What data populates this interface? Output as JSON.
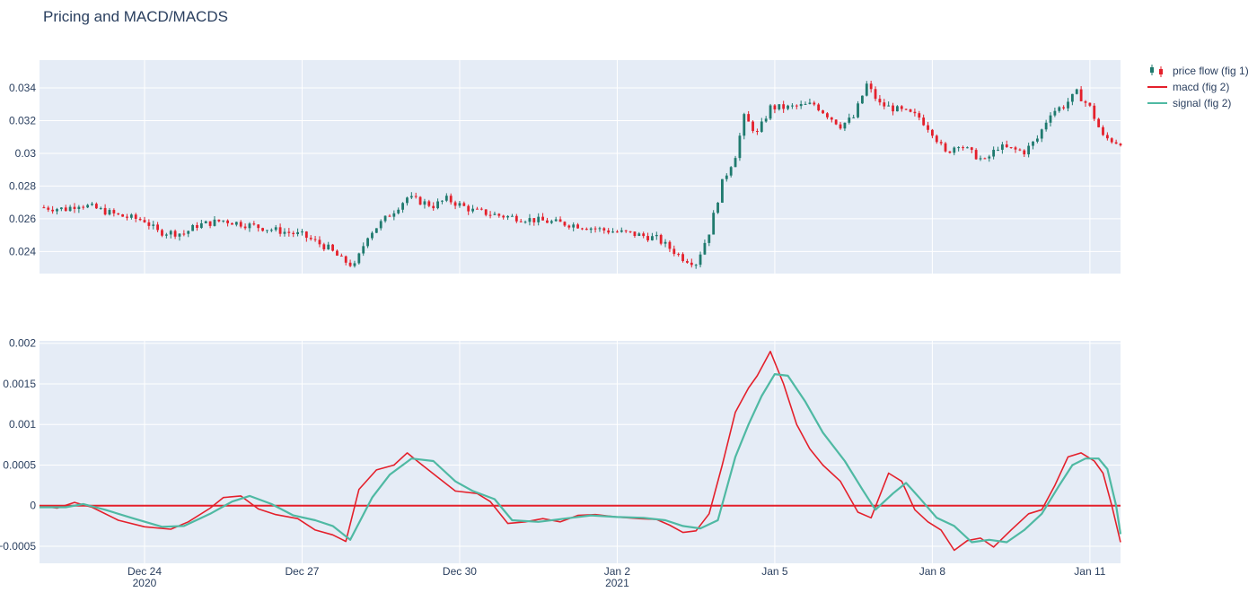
{
  "title": "Pricing and MACD/MACDS",
  "colors": {
    "increasing": "#1f7a6e",
    "decreasing": "#e4202b",
    "macd": "#e4202b",
    "signal": "#4fb9a3",
    "zero_line": "#e4202b",
    "plot_bg": "#e5ecf6",
    "grid": "#ffffff",
    "text": "#2a3f5f"
  },
  "legend": [
    {
      "label": "price flow (fig 1)",
      "type": "candlestick"
    },
    {
      "label": "macd (fig 2)",
      "type": "line",
      "color": "#e4202b"
    },
    {
      "label": "signal (fig 2)",
      "type": "line",
      "color": "#4fb9a3"
    }
  ],
  "chart_data": [
    {
      "type": "candlestick",
      "name": "price flow (fig 1)",
      "x_range": [
        "2020-12-22T00:00",
        "2021-01-11T14:00"
      ],
      "ylim": [
        0.02265,
        0.0357
      ],
      "y_ticks": [
        {
          "value": 0.024,
          "label": "0.024"
        },
        {
          "value": 0.026,
          "label": "0.026"
        },
        {
          "value": 0.028,
          "label": "0.028"
        },
        {
          "value": 0.03,
          "label": "0.03"
        },
        {
          "value": 0.032,
          "label": "0.032"
        },
        {
          "value": 0.034,
          "label": "0.034"
        }
      ],
      "interval_hours": 2,
      "close_profile": [
        [
          "2020-12-22T00:00",
          0.0267
        ],
        [
          "2020-12-22T12:00",
          0.0266
        ],
        [
          "2020-12-22T18:00",
          0.0269
        ],
        [
          "2020-12-23T00:00",
          0.0267
        ],
        [
          "2020-12-23T12:00",
          0.0262
        ],
        [
          "2020-12-24T00:00",
          0.0259
        ],
        [
          "2020-12-24T06:00",
          0.0252
        ],
        [
          "2020-12-24T18:00",
          0.0251
        ],
        [
          "2020-12-25T00:00",
          0.0256
        ],
        [
          "2020-12-25T12:00",
          0.0259
        ],
        [
          "2020-12-26T00:00",
          0.0256
        ],
        [
          "2020-12-26T12:00",
          0.0253
        ],
        [
          "2020-12-27T00:00",
          0.025
        ],
        [
          "2020-12-27T12:00",
          0.0242
        ],
        [
          "2020-12-27T18:00",
          0.0235
        ],
        [
          "2020-12-28T00:00",
          0.0231
        ],
        [
          "2020-12-28T06:00",
          0.025
        ],
        [
          "2020-12-28T18:00",
          0.0265
        ],
        [
          "2020-12-29T00:00",
          0.0273
        ],
        [
          "2020-12-29T12:00",
          0.0268
        ],
        [
          "2020-12-29T18:00",
          0.0272
        ],
        [
          "2020-12-30T06:00",
          0.0265
        ],
        [
          "2020-12-30T18:00",
          0.0262
        ],
        [
          "2020-12-31T12:00",
          0.0259
        ],
        [
          "2021-01-01T06:00",
          0.0256
        ],
        [
          "2021-01-01T18:00",
          0.0253
        ],
        [
          "2021-01-02T06:00",
          0.0251
        ],
        [
          "2021-01-02T18:00",
          0.0248
        ],
        [
          "2021-01-03T00:00",
          0.0242
        ],
        [
          "2021-01-03T06:00",
          0.0236
        ],
        [
          "2021-01-03T12:00",
          0.0233
        ],
        [
          "2021-01-03T18:00",
          0.0252
        ],
        [
          "2021-01-04T00:00",
          0.0282
        ],
        [
          "2021-01-04T06:00",
          0.0299
        ],
        [
          "2021-01-04T10:00",
          0.0322
        ],
        [
          "2021-01-04T16:00",
          0.0312
        ],
        [
          "2021-01-04T22:00",
          0.0328
        ],
        [
          "2021-01-05T06:00",
          0.0328
        ],
        [
          "2021-01-05T18:00",
          0.033
        ],
        [
          "2021-01-06T06:00",
          0.0317
        ],
        [
          "2021-01-06T12:00",
          0.0322
        ],
        [
          "2021-01-06T18:00",
          0.0342
        ],
        [
          "2021-01-07T00:00",
          0.033
        ],
        [
          "2021-01-07T12:00",
          0.0325
        ],
        [
          "2021-01-07T18:00",
          0.0322
        ],
        [
          "2021-01-08T00:00",
          0.0313
        ],
        [
          "2021-01-08T06:00",
          0.03
        ],
        [
          "2021-01-08T12:00",
          0.0306
        ],
        [
          "2021-01-08T18:00",
          0.03
        ],
        [
          "2021-01-09T00:00",
          0.0295
        ],
        [
          "2021-01-09T06:00",
          0.0304
        ],
        [
          "2021-01-09T18:00",
          0.0301
        ],
        [
          "2021-01-10T00:00",
          0.0309
        ],
        [
          "2021-01-10T06:00",
          0.0325
        ],
        [
          "2021-01-10T12:00",
          0.0329
        ],
        [
          "2021-01-10T18:00",
          0.0337
        ],
        [
          "2021-01-11T00:00",
          0.0328
        ],
        [
          "2021-01-11T06:00",
          0.031
        ],
        [
          "2021-01-11T12:00",
          0.0307
        ]
      ]
    },
    {
      "type": "line",
      "x_range": [
        "2020-12-22T00:00",
        "2021-01-11T14:00"
      ],
      "ylim": [
        -0.00071,
        0.00203
      ],
      "y_ticks": [
        {
          "value": -0.0005,
          "label": "−0.0005"
        },
        {
          "value": 0,
          "label": "0"
        },
        {
          "value": 0.0005,
          "label": "0.0005"
        },
        {
          "value": 0.001,
          "label": "0.001"
        },
        {
          "value": 0.0015,
          "label": "0.0015"
        },
        {
          "value": 0.002,
          "label": "0.002"
        }
      ],
      "x_ticks": [
        {
          "value": "2020-12-24",
          "label": "Dec 24",
          "sublabel": "2020"
        },
        {
          "value": "2020-12-27",
          "label": "Dec 27",
          "sublabel": ""
        },
        {
          "value": "2020-12-30",
          "label": "Dec 30",
          "sublabel": ""
        },
        {
          "value": "2021-01-02",
          "label": "Jan 2",
          "sublabel": "2021"
        },
        {
          "value": "2021-01-05",
          "label": "Jan 5",
          "sublabel": ""
        },
        {
          "value": "2021-01-08",
          "label": "Jan 8",
          "sublabel": ""
        },
        {
          "value": "2021-01-11",
          "label": "Jan 11",
          "sublabel": ""
        }
      ],
      "zero_line": 0,
      "series": [
        {
          "name": "macd (fig 2)",
          "points": [
            [
              "2020-12-22T00:00",
              0.0
            ],
            [
              "2020-12-22T08:00",
              -3e-05
            ],
            [
              "2020-12-22T16:00",
              4e-05
            ],
            [
              "2020-12-23T00:00",
              -2e-05
            ],
            [
              "2020-12-23T12:00",
              -0.00018
            ],
            [
              "2020-12-24T00:00",
              -0.00026
            ],
            [
              "2020-12-24T12:00",
              -0.00029
            ],
            [
              "2020-12-24T20:00",
              -0.0002
            ],
            [
              "2020-12-25T06:00",
              -3e-05
            ],
            [
              "2020-12-25T12:00",
              0.0001
            ],
            [
              "2020-12-25T20:00",
              0.00012
            ],
            [
              "2020-12-26T04:00",
              -4e-05
            ],
            [
              "2020-12-26T12:00",
              -0.00011
            ],
            [
              "2020-12-26T22:00",
              -0.00016
            ],
            [
              "2020-12-27T06:00",
              -0.0003
            ],
            [
              "2020-12-27T14:00",
              -0.00036
            ],
            [
              "2020-12-27T20:00",
              -0.00044
            ],
            [
              "2020-12-28T02:00",
              0.0002
            ],
            [
              "2020-12-28T10:00",
              0.00044
            ],
            [
              "2020-12-28T18:00",
              0.0005
            ],
            [
              "2020-12-29T00:00",
              0.00065
            ],
            [
              "2020-12-29T06:00",
              0.00052
            ],
            [
              "2020-12-29T14:00",
              0.00035
            ],
            [
              "2020-12-29T22:00",
              0.00018
            ],
            [
              "2020-12-30T08:00",
              0.00015
            ],
            [
              "2020-12-30T14:00",
              5e-05
            ],
            [
              "2020-12-30T22:00",
              -0.00022
            ],
            [
              "2020-12-31T06:00",
              -0.0002
            ],
            [
              "2020-12-31T14:00",
              -0.00016
            ],
            [
              "2020-12-31T22:00",
              -0.0002
            ],
            [
              "2021-01-01T06:00",
              -0.00012
            ],
            [
              "2021-01-01T14:00",
              -0.00011
            ],
            [
              "2021-01-02T00:00",
              -0.00014
            ],
            [
              "2021-01-02T10:00",
              -0.00016
            ],
            [
              "2021-01-02T18:00",
              -0.00017
            ],
            [
              "2021-01-03T00:00",
              -0.00024
            ],
            [
              "2021-01-03T06:00",
              -0.00033
            ],
            [
              "2021-01-03T12:00",
              -0.00031
            ],
            [
              "2021-01-03T18:00",
              -0.0001
            ],
            [
              "2021-01-04T00:00",
              0.0005
            ],
            [
              "2021-01-04T06:00",
              0.00115
            ],
            [
              "2021-01-04T12:00",
              0.00145
            ],
            [
              "2021-01-04T16:00",
              0.0016
            ],
            [
              "2021-01-04T22:00",
              0.0019
            ],
            [
              "2021-01-05T04:00",
              0.0015
            ],
            [
              "2021-01-05T10:00",
              0.001
            ],
            [
              "2021-01-05T16:00",
              0.0007
            ],
            [
              "2021-01-05T22:00",
              0.0005
            ],
            [
              "2021-01-06T06:00",
              0.0003
            ],
            [
              "2021-01-06T14:00",
              -8e-05
            ],
            [
              "2021-01-06T20:00",
              -0.00015
            ],
            [
              "2021-01-07T04:00",
              0.0004
            ],
            [
              "2021-01-07T10:00",
              0.0003
            ],
            [
              "2021-01-07T16:00",
              -5e-05
            ],
            [
              "2021-01-07T22:00",
              -0.0002
            ],
            [
              "2021-01-08T04:00",
              -0.0003
            ],
            [
              "2021-01-08T10:00",
              -0.00055
            ],
            [
              "2021-01-08T16:00",
              -0.00043
            ],
            [
              "2021-01-08T22:00",
              -0.0004
            ],
            [
              "2021-01-09T04:00",
              -0.00051
            ],
            [
              "2021-01-09T12:00",
              -0.0003
            ],
            [
              "2021-01-09T20:00",
              -0.0001
            ],
            [
              "2021-01-10T02:00",
              -5e-05
            ],
            [
              "2021-01-10T08:00",
              0.00025
            ],
            [
              "2021-01-10T14:00",
              0.0006
            ],
            [
              "2021-01-10T20:00",
              0.00065
            ],
            [
              "2021-01-11T02:00",
              0.00055
            ],
            [
              "2021-01-11T06:00",
              0.0004
            ],
            [
              "2021-01-11T10:00",
              0.0
            ],
            [
              "2021-01-11T14:00",
              -0.00045
            ]
          ]
        },
        {
          "name": "signal (fig 2)",
          "points": [
            [
              "2020-12-22T00:00",
              -2e-05
            ],
            [
              "2020-12-22T12:00",
              -2e-05
            ],
            [
              "2020-12-22T20:00",
              2e-05
            ],
            [
              "2020-12-23T06:00",
              -5e-05
            ],
            [
              "2020-12-23T18:00",
              -0.00015
            ],
            [
              "2020-12-24T08:00",
              -0.00026
            ],
            [
              "2020-12-24T18:00",
              -0.00025
            ],
            [
              "2020-12-25T06:00",
              -0.0001
            ],
            [
              "2020-12-25T16:00",
              5e-05
            ],
            [
              "2020-12-26T00:00",
              0.00012
            ],
            [
              "2020-12-26T10:00",
              2e-05
            ],
            [
              "2020-12-26T20:00",
              -0.00012
            ],
            [
              "2020-12-27T06:00",
              -0.00018
            ],
            [
              "2020-12-27T14:00",
              -0.00025
            ],
            [
              "2020-12-27T22:00",
              -0.00042
            ],
            [
              "2020-12-28T08:00",
              0.0001
            ],
            [
              "2020-12-28T16:00",
              0.00038
            ],
            [
              "2020-12-29T02:00",
              0.00058
            ],
            [
              "2020-12-29T12:00",
              0.00055
            ],
            [
              "2020-12-29T22:00",
              0.0003
            ],
            [
              "2020-12-30T06:00",
              0.00018
            ],
            [
              "2020-12-30T16:00",
              8e-05
            ],
            [
              "2020-12-31T00:00",
              -0.00018
            ],
            [
              "2020-12-31T12:00",
              -0.0002
            ],
            [
              "2021-01-01T00:00",
              -0.00016
            ],
            [
              "2021-01-01T12:00",
              -0.00012
            ],
            [
              "2021-01-02T00:00",
              -0.00014
            ],
            [
              "2021-01-02T12:00",
              -0.00015
            ],
            [
              "2021-01-02T22:00",
              -0.00018
            ],
            [
              "2021-01-03T06:00",
              -0.00025
            ],
            [
              "2021-01-03T14:00",
              -0.00028
            ],
            [
              "2021-01-03T22:00",
              -0.00018
            ],
            [
              "2021-01-04T06:00",
              0.0006
            ],
            [
              "2021-01-04T12:00",
              0.001
            ],
            [
              "2021-01-04T18:00",
              0.00135
            ],
            [
              "2021-01-05T00:00",
              0.00162
            ],
            [
              "2021-01-05T06:00",
              0.0016
            ],
            [
              "2021-01-05T14:00",
              0.00128
            ],
            [
              "2021-01-05T22:00",
              0.0009
            ],
            [
              "2021-01-06T08:00",
              0.00055
            ],
            [
              "2021-01-06T16:00",
              0.0002
            ],
            [
              "2021-01-06T22:00",
              -5e-05
            ],
            [
              "2021-01-07T06:00",
              0.00015
            ],
            [
              "2021-01-07T12:00",
              0.00028
            ],
            [
              "2021-01-07T18:00",
              0.0001
            ],
            [
              "2021-01-08T02:00",
              -0.00015
            ],
            [
              "2021-01-08T10:00",
              -0.00025
            ],
            [
              "2021-01-08T18:00",
              -0.00045
            ],
            [
              "2021-01-09T02:00",
              -0.00042
            ],
            [
              "2021-01-09T10:00",
              -0.00045
            ],
            [
              "2021-01-09T18:00",
              -0.0003
            ],
            [
              "2021-01-10T02:00",
              -0.0001
            ],
            [
              "2021-01-10T10:00",
              0.00025
            ],
            [
              "2021-01-10T16:00",
              0.0005
            ],
            [
              "2021-01-10T22:00",
              0.00058
            ],
            [
              "2021-01-11T04:00",
              0.00058
            ],
            [
              "2021-01-11T08:00",
              0.00045
            ],
            [
              "2021-01-11T12:00",
              0.0
            ],
            [
              "2021-01-11T14:00",
              -0.00035
            ]
          ]
        }
      ]
    }
  ]
}
